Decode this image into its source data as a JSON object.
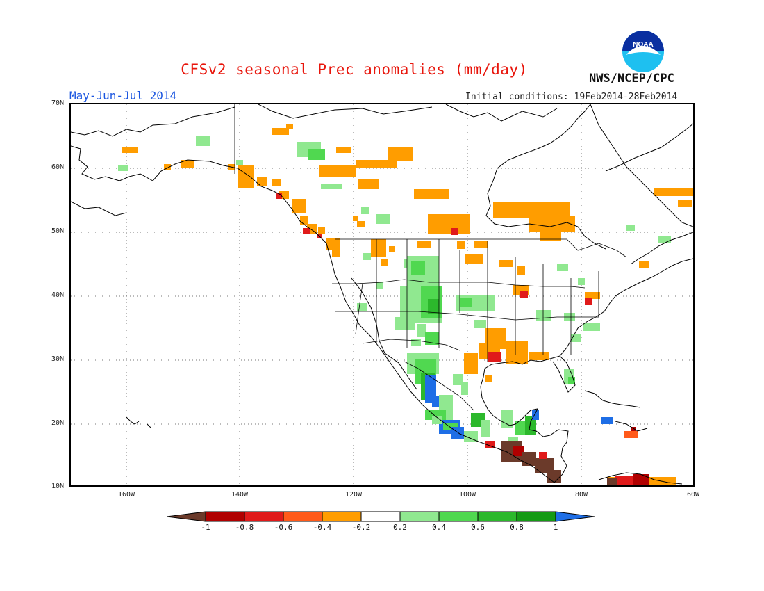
{
  "title": "CFSv2 seasonal Prec anomalies (mm/day)",
  "season": "May-Jun-Jul 2014",
  "initial_conditions": "Initial conditions: 19Feb2014-28Feb2014",
  "agency": "NWS/NCEP/CPC",
  "logo_text": "NOAA",
  "lat_labels": [
    "70N",
    "60N",
    "50N",
    "40N",
    "30N",
    "20N",
    "10N"
  ],
  "lon_labels": [
    "160W",
    "140W",
    "120W",
    "100W",
    "80W",
    "60W"
  ],
  "colorbar": {
    "labels": [
      "-1",
      "-0.8",
      "-0.6",
      "-0.4",
      "-0.2",
      "0.2",
      "0.4",
      "0.6",
      "0.8",
      "1"
    ],
    "colors": [
      "#6b3a2a",
      "#b00000",
      "#e01a1a",
      "#ff5a1a",
      "#ff9d00",
      "#ffffff",
      "#90e890",
      "#50d850",
      "#2cb82c",
      "#159a15",
      "#1e6ee6"
    ]
  },
  "colors": {
    "title": "#e8160c",
    "season": "#1a55e0",
    "dry_brown": "#6b3a2a",
    "dry_darkred": "#b00000",
    "dry_red": "#e01a1a",
    "dry_orange": "#ff9d00",
    "wet_light": "#90e890",
    "wet_mid": "#50d850",
    "wet_dark": "#159a15",
    "wet_blue": "#1e6ee6"
  }
}
